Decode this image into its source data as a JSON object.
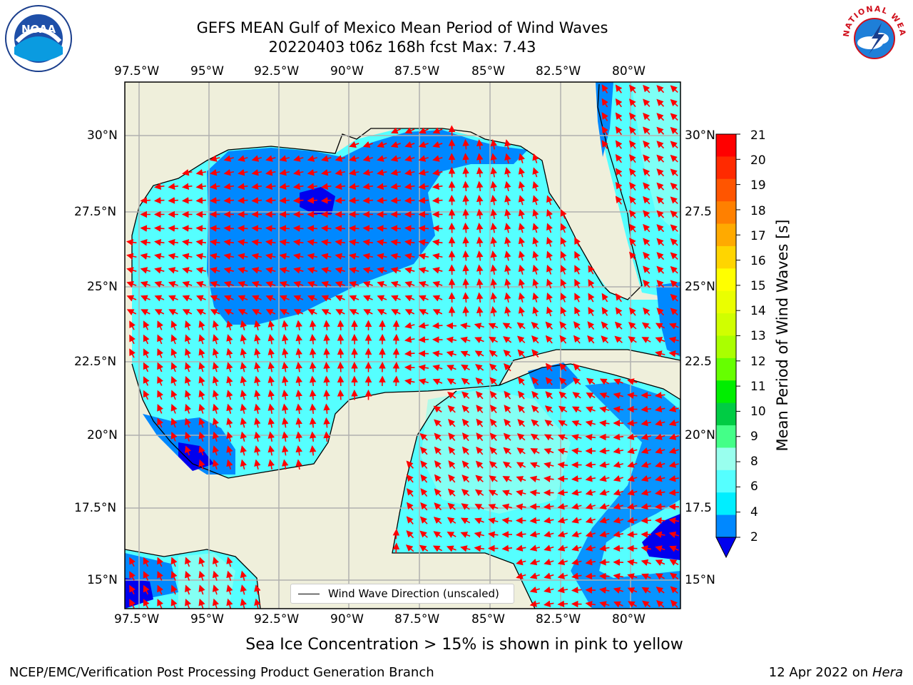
{
  "title_line1": "GEFS MEAN Gulf of Mexico Mean Period of Wind Waves",
  "title_line2": "20220403 t06z 168h fcst   Max: 7.43",
  "lon_labels": [
    "97.5°W",
    "95°W",
    "92.5°W",
    "90°W",
    "87.5°W",
    "85°W",
    "82.5°W",
    "80°W"
  ],
  "lat_labels_left": [
    "30°N",
    "27.5°N",
    "25°N",
    "22.5°N",
    "20°N",
    "17.5°N",
    "15°N"
  ],
  "lat_labels_right": [
    "30°N",
    "27.5",
    "25°N",
    "22.5",
    "20°N",
    "17.5",
    "15°N"
  ],
  "legend": {
    "label": "Wind Wave Direction (unscaled)"
  },
  "colorbar": {
    "label": "Mean Period of Wind Waves [s]",
    "ticks": [
      "21",
      "20",
      "19",
      "18",
      "17",
      "16",
      "15",
      "14",
      "13",
      "12",
      "11",
      "10",
      "9",
      "8",
      "6",
      "4",
      "2"
    ],
    "colors": [
      "#ff0000",
      "#ff2a00",
      "#ff5500",
      "#ff8000",
      "#ffaa00",
      "#ffd500",
      "#ffff00",
      "#eaff00",
      "#d0ff00",
      "#aaff00",
      "#66ff00",
      "#00ee00",
      "#00cc44",
      "#44ff88",
      "#99ffee",
      "#55ffff",
      "#00eeff",
      "#0088ff",
      "#0000ee"
    ]
  },
  "subtitle": "Sea Ice Concentration > 15% is shown in pink to yellow",
  "footer_left": "NCEP/EMC/Verification Post Processing Product Generation Branch",
  "footer_date": "12 Apr 2022 on ",
  "footer_host": "Hera",
  "logos": {
    "left_text": "NOAA",
    "right_text": "NATIONAL WEATHER SERVICE"
  },
  "colors": {
    "land": "#efefdb",
    "shallow": "#55ffff",
    "mid": "#00eeff",
    "deep": "#0088ff",
    "deepest": "#0000ee",
    "arrows": "#ff0000"
  }
}
